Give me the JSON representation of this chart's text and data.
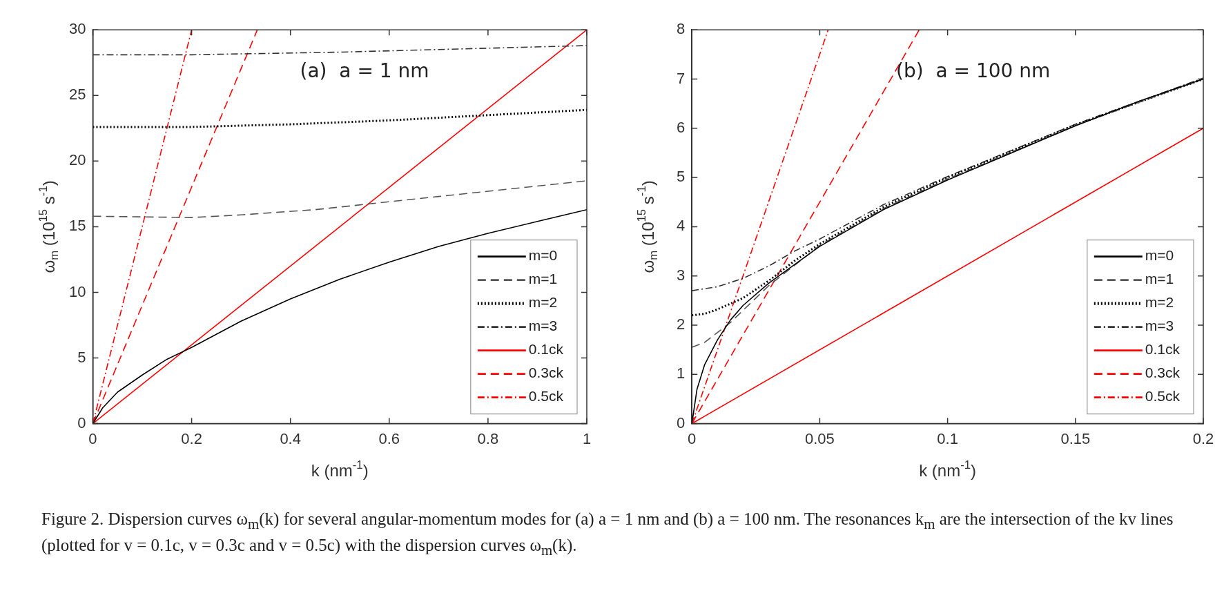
{
  "chart_data": [
    {
      "type": "line",
      "xlabel": "k (nm$^{-1}$)",
      "ylabel": "ω$_{m}$ (10$^{15}$ s$^{-1}$)",
      "xlim": [
        0,
        1
      ],
      "ylim": [
        0,
        30
      ],
      "xticks": [
        0,
        0.2,
        0.4,
        0.6,
        0.8,
        1
      ],
      "yticks": [
        0,
        5,
        10,
        15,
        20,
        25,
        30
      ],
      "grid": false,
      "legend": "bottom right",
      "marker": "none",
      "annotations": [
        "(a)  a = 1 nm",
        "Figure 2. Dispersion curves ω$_{m}$(k) for several angular-momentum modes for (a) a = 1 nm and (b) a = 100 nm. The resonances k$_{m}$ are the intersection of the kv lines (plotted for v = 0.1c, v = 0.3c and v = 0.5c) with the dispersion curves ω$_{m}$(k)."
      ],
      "series": [
        {
          "name": "m=0",
          "color": "#000000",
          "line_style": "solid",
          "x": [
            0,
            0.02,
            0.05,
            0.1,
            0.15,
            0.2,
            0.3,
            0.4,
            0.5,
            0.6,
            0.7,
            0.8,
            0.9,
            1
          ],
          "values": [
            0,
            1.2,
            2.4,
            3.7,
            4.9,
            5.8,
            7.8,
            9.5,
            11,
            12.3,
            13.5,
            14.5,
            15.4,
            16.3
          ]
        },
        {
          "name": "m=1",
          "color": "#555555",
          "line_style": "dashed",
          "x": [
            0,
            0.1,
            0.2,
            0.3,
            0.45,
            0.55,
            0.7,
            0.85,
            1
          ],
          "values": [
            15.8,
            15.75,
            15.7,
            15.9,
            16.3,
            16.7,
            17.3,
            17.9,
            18.5
          ]
        },
        {
          "name": "m=2",
          "color": "#000000",
          "line_style": "dotted",
          "x": [
            0,
            0.2,
            0.4,
            0.6,
            0.8,
            1
          ],
          "values": [
            22.6,
            22.6,
            22.8,
            23.1,
            23.5,
            23.9
          ]
        },
        {
          "name": "m=3",
          "color": "#333333",
          "line_style": "dashdot",
          "x": [
            0,
            0.2,
            0.5,
            0.7,
            1
          ],
          "values": [
            28.1,
            28.1,
            28.3,
            28.5,
            28.8
          ]
        },
        {
          "name": "0.1ck",
          "color": "#ff0000",
          "line_style": "solid",
          "x": [
            0,
            1
          ],
          "values": [
            0,
            30
          ]
        },
        {
          "name": "0.3ck",
          "color": "#ff0000",
          "line_style": "dashed",
          "x": [
            0,
            0.333
          ],
          "values": [
            0,
            30
          ]
        },
        {
          "name": "0.5ck",
          "color": "#ff0000",
          "line_style": "dashdot",
          "x": [
            0,
            0.2
          ],
          "values": [
            0,
            30
          ]
        }
      ]
    },
    {
      "type": "line",
      "xlabel": "k (nm$^{-1}$)",
      "ylabel": "ω$_{m}$ (10$^{15}$ s$^{-1}$)",
      "xlim": [
        0,
        0.2
      ],
      "ylim": [
        0,
        8
      ],
      "xticks": [
        0,
        0.05,
        0.1,
        0.15,
        0.2
      ],
      "yticks": [
        0,
        1,
        2,
        3,
        4,
        5,
        6,
        7,
        8
      ],
      "grid": false,
      "legend": "bottom right",
      "marker": "none",
      "annotations": [
        "(b)  a = 100 nm"
      ],
      "series": [
        {
          "name": "m=0",
          "color": "#000000",
          "line_style": "solid",
          "x": [
            0,
            0.002,
            0.005,
            0.01,
            0.015,
            0.02,
            0.03,
            0.05,
            0.075,
            0.1,
            0.125,
            0.15,
            0.175,
            0.2
          ],
          "values": [
            0,
            0.7,
            1.2,
            1.7,
            2.1,
            2.4,
            2.85,
            3.6,
            4.35,
            4.95,
            5.5,
            6.05,
            6.55,
            7
          ]
        },
        {
          "name": "m=1",
          "color": "#555555",
          "line_style": "dashed",
          "x": [
            0,
            0.005,
            0.01,
            0.015,
            0.02,
            0.03,
            0.05,
            0.075,
            0.1,
            0.15,
            0.2
          ],
          "values": [
            1.55,
            1.65,
            1.85,
            2.05,
            2.3,
            2.8,
            3.62,
            4.37,
            4.97,
            6.06,
            7
          ]
        },
        {
          "name": "m=2",
          "color": "#000000",
          "line_style": "dotted",
          "x": [
            0,
            0.005,
            0.01,
            0.02,
            0.03,
            0.04,
            0.05,
            0.075,
            0.1,
            0.15,
            0.2
          ],
          "values": [
            2.2,
            2.23,
            2.32,
            2.55,
            2.9,
            3.3,
            3.65,
            4.4,
            5,
            6.07,
            7
          ]
        },
        {
          "name": "m=3",
          "color": "#333333",
          "line_style": "dashdot",
          "x": [
            0,
            0.01,
            0.02,
            0.03,
            0.04,
            0.05,
            0.075,
            0.1,
            0.15,
            0.2
          ],
          "values": [
            2.7,
            2.78,
            2.95,
            3.2,
            3.5,
            3.75,
            4.45,
            5.02,
            6.08,
            7.02
          ]
        },
        {
          "name": "0.1ck",
          "color": "#ff0000",
          "line_style": "solid",
          "x": [
            0,
            0.2
          ],
          "values": [
            0,
            6
          ]
        },
        {
          "name": "0.3ck",
          "color": "#ff0000",
          "line_style": "dashed",
          "x": [
            0,
            0.0889
          ],
          "values": [
            0,
            8
          ]
        },
        {
          "name": "0.5ck",
          "color": "#ff0000",
          "line_style": "dashdot",
          "x": [
            0,
            0.0533
          ],
          "values": [
            0,
            8
          ]
        }
      ]
    }
  ]
}
